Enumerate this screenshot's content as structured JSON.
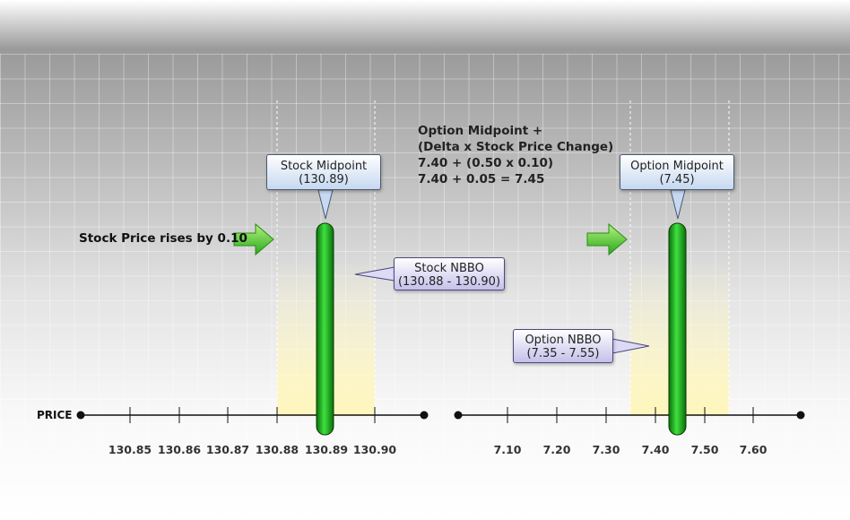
{
  "axis_label": "PRICE",
  "stock": {
    "ticks": [
      "130.85",
      "130.86",
      "130.87",
      "130.88",
      "130.89",
      "130.90"
    ],
    "rise_label": "Stock Price rises by 0.10",
    "midpoint": {
      "title": "Stock Midpoint",
      "value": "(130.89)"
    },
    "nbbo": {
      "title": "Stock NBBO",
      "value": "(130.88 - 130.90)"
    }
  },
  "option": {
    "ticks": [
      "7.10",
      "7.20",
      "7.30",
      "7.40",
      "7.50",
      "7.60"
    ],
    "midpoint": {
      "title": "Option Midpoint",
      "value": "(7.45)"
    },
    "nbbo": {
      "title": "Option NBBO",
      "value": "(7.35 - 7.55)"
    }
  },
  "formula": {
    "line1": "Option Midpoint +",
    "line2": "(Delta x Stock Price Change)",
    "line3": "7.40 + (0.50 x 0.10)",
    "line4": "7.40 + 0.05 = 7.45"
  },
  "colors": {
    "bar_green": "#1aa81a",
    "nbbo_band": "#fff6b8",
    "arrow_green": "#5cd03a"
  }
}
